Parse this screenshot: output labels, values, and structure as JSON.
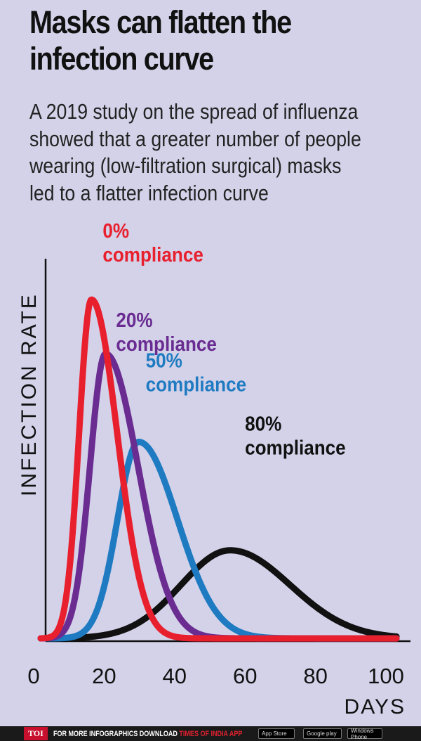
{
  "title": "Masks can flatten the infection curve",
  "subtitle": "A 2019 study on the spread of influenza showed that a greater number of people wearing (low-filtration surgical) masks led to a flatter infection curve",
  "footer": {
    "badge": "TOI",
    "text": "FOR MORE  INFOGRAPHICS DOWNLOAD",
    "brand": "TIMES OF INDIA APP",
    "stores": [
      "App Store",
      "Google play",
      "Windows Phone"
    ]
  },
  "chart_data": {
    "type": "line",
    "xlabel": "DAYS",
    "ylabel": "INFECTION RATE",
    "xlim": [
      0,
      103
    ],
    "ylim": [
      0,
      100
    ],
    "x_ticks": [
      0,
      20,
      40,
      60,
      80,
      100
    ],
    "grid": false,
    "legend": "inline labels",
    "series": [
      {
        "name": "0% compliance",
        "label_lines": [
          "0%",
          "compliance"
        ],
        "color": "#e8202e",
        "peak_x": 16.4,
        "peak_y": 100,
        "width_left": 3.5,
        "width_right": 7.3
      },
      {
        "name": "20% compliance",
        "label_lines": [
          "20%",
          "compliance"
        ],
        "color": "#6a2c91",
        "peak_x": 20.4,
        "peak_y": 84,
        "width_left": 4.4,
        "width_right": 9.2
      },
      {
        "name": "50% compliance",
        "label_lines": [
          "50%",
          "compliance"
        ],
        "color": "#1f7bc1",
        "peak_x": 29.8,
        "peak_y": 58,
        "width_left": 6.0,
        "width_right": 11.0
      },
      {
        "name": "80% compliance",
        "label_lines": [
          "80%",
          "compliance"
        ],
        "color": "#111111",
        "peak_x": 55.8,
        "peak_y": 26,
        "width_left": 14.0,
        "width_right": 17.0
      }
    ]
  }
}
